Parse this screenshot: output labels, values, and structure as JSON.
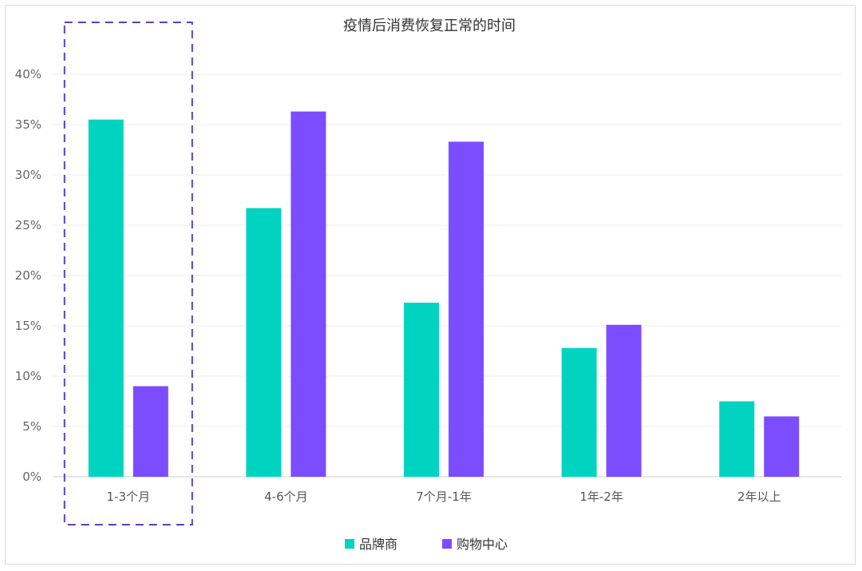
{
  "chart_data": {
    "type": "bar",
    "title": "疫情后消费恢复正常的时间",
    "categories": [
      "1-3个月",
      "4-6个月",
      "7个月-1年",
      "1年-2年",
      "2年以上"
    ],
    "series": [
      {
        "name": "品牌商",
        "color": "#00d4c0",
        "values": [
          35.5,
          26.7,
          17.3,
          12.8,
          7.5
        ]
      },
      {
        "name": "购物中心",
        "color": "#7b4dff",
        "values": [
          9.0,
          36.3,
          33.3,
          15.1,
          6.0
        ]
      }
    ],
    "ylim": [
      0,
      40
    ],
    "yticks": [
      "0%",
      "5%",
      "10%",
      "15%",
      "20%",
      "25%",
      "30%",
      "35%",
      "40%"
    ],
    "yticks_values": [
      0,
      5,
      10,
      15,
      20,
      25,
      30,
      35,
      40
    ],
    "xlabel": "",
    "ylabel": "",
    "grid": true,
    "legend": "bottom-center",
    "highlight": {
      "category": "1-3个月",
      "style": "dashed",
      "color": "#5b3fc4"
    }
  }
}
